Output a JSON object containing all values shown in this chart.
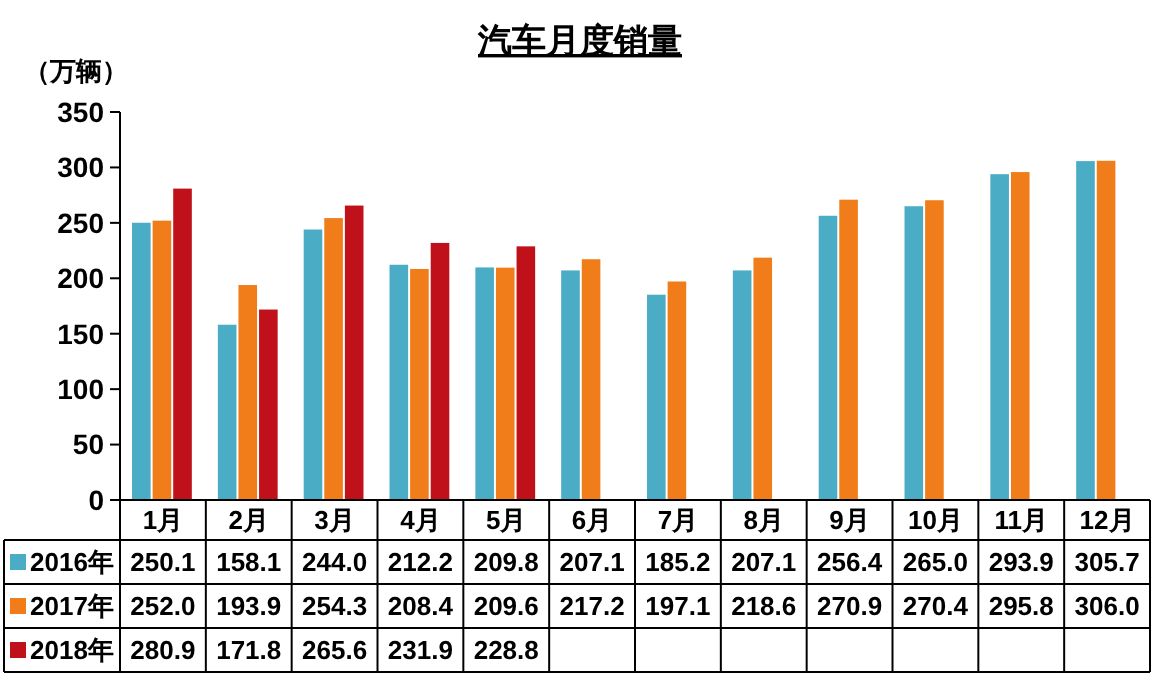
{
  "chart_data": {
    "type": "bar",
    "title": "汽车月度销量",
    "ylabel": "（万辆）",
    "categories": [
      "1月",
      "2月",
      "3月",
      "4月",
      "5月",
      "6月",
      "7月",
      "8月",
      "9月",
      "10月",
      "11月",
      "12月"
    ],
    "series": [
      {
        "name": "2016年",
        "color": "#4bacc6",
        "values": [
          250.1,
          158.1,
          244.0,
          212.2,
          209.8,
          207.1,
          185.2,
          207.1,
          256.4,
          265.0,
          293.9,
          305.7
        ],
        "value_labels": [
          "250.1",
          "158.1",
          "244.0",
          "212.2",
          "209.8",
          "207.1",
          "185.2",
          "207.1",
          "256.4",
          "265.0",
          "293.9",
          "305.7"
        ]
      },
      {
        "name": "2017年",
        "color": "#f07d1a",
        "values": [
          252.0,
          193.9,
          254.3,
          208.4,
          209.6,
          217.2,
          197.1,
          218.6,
          270.9,
          270.4,
          295.8,
          306.0
        ],
        "value_labels": [
          "252.0",
          "193.9",
          "254.3",
          "208.4",
          "209.6",
          "217.2",
          "197.1",
          "218.6",
          "270.9",
          "270.4",
          "295.8",
          "306.0"
        ]
      },
      {
        "name": "2018年",
        "color": "#c0101a",
        "values": [
          280.9,
          171.8,
          265.6,
          231.9,
          228.8,
          null,
          null,
          null,
          null,
          null,
          null,
          null
        ],
        "value_labels": [
          "280.9",
          "171.8",
          "265.6",
          "231.9",
          "228.8",
          null,
          null,
          null,
          null,
          null,
          null,
          null
        ]
      }
    ],
    "ylim": [
      0,
      350
    ],
    "yticks": [
      0,
      50,
      100,
      150,
      200,
      250,
      300,
      350
    ],
    "grid": false,
    "legend": "bottom"
  }
}
